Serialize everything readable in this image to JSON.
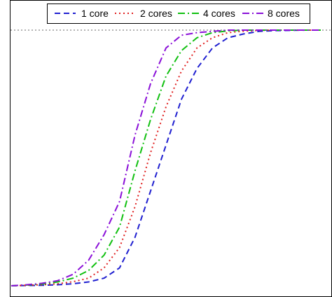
{
  "chart_data": {
    "type": "line",
    "title": "",
    "xlabel": "",
    "ylabel": "",
    "xlim": [
      0,
      20
    ],
    "ylim": [
      0,
      1
    ],
    "grid": false,
    "legend_placement": "top",
    "reference_line": {
      "y": 1.0,
      "style": "dotted",
      "color": "#666666"
    },
    "series": [
      {
        "name": "1 core",
        "color": "#1f1fd0",
        "dash": "dashed",
        "x": [
          0,
          1,
          2,
          3,
          4,
          5,
          6,
          7,
          8,
          9,
          10,
          11,
          12,
          13,
          14,
          15,
          16,
          17,
          18,
          19,
          20
        ],
        "y": [
          0.0,
          0.001,
          0.002,
          0.004,
          0.008,
          0.015,
          0.03,
          0.07,
          0.19,
          0.37,
          0.55,
          0.73,
          0.85,
          0.93,
          0.97,
          0.985,
          0.995,
          0.998,
          0.999,
          1.0,
          1.0
        ]
      },
      {
        "name": "2 cores",
        "color": "#e02020",
        "dash": "dotted",
        "x": [
          0,
          1,
          2,
          3,
          4,
          5,
          6,
          7,
          8,
          9,
          10,
          11,
          12,
          13,
          14,
          15,
          16,
          17,
          18,
          19,
          20
        ],
        "y": [
          0.0,
          0.002,
          0.004,
          0.008,
          0.016,
          0.03,
          0.07,
          0.15,
          0.31,
          0.52,
          0.7,
          0.84,
          0.93,
          0.97,
          0.99,
          0.996,
          0.999,
          1.0,
          1.0,
          1.0,
          1.0
        ]
      },
      {
        "name": "4 cores",
        "color": "#10c010",
        "dash": "dashdot",
        "x": [
          0,
          1,
          2,
          3,
          4,
          5,
          6,
          7,
          8,
          9,
          10,
          11,
          12,
          13,
          14,
          15,
          16,
          17,
          18,
          19,
          20
        ],
        "y": [
          0.0,
          0.003,
          0.007,
          0.015,
          0.03,
          0.06,
          0.12,
          0.23,
          0.45,
          0.65,
          0.82,
          0.92,
          0.97,
          0.99,
          0.997,
          1.0,
          1.0,
          1.0,
          1.0,
          1.0,
          1.0
        ]
      },
      {
        "name": "8 cores",
        "color": "#8a10d8",
        "dash": "dashdot",
        "x": [
          0,
          1,
          2,
          3,
          4,
          5,
          6,
          7,
          8,
          9,
          10,
          11,
          12,
          13,
          14,
          15,
          16,
          17,
          18,
          19,
          20
        ],
        "y": [
          0.0,
          0.004,
          0.01,
          0.02,
          0.045,
          0.1,
          0.2,
          0.33,
          0.59,
          0.79,
          0.93,
          0.98,
          0.99,
          0.995,
          1.0,
          1.0,
          1.0,
          1.0,
          1.0,
          1.0,
          1.0
        ]
      }
    ]
  }
}
